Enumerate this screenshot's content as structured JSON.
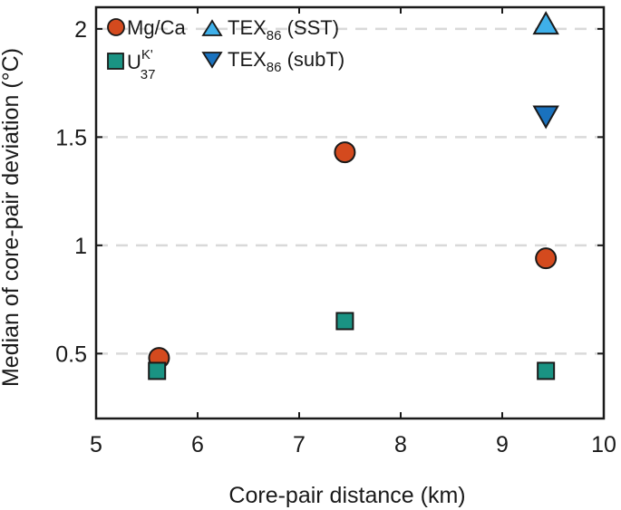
{
  "chart_data": {
    "type": "scatter",
    "xlabel": "Core-pair distance (km)",
    "ylabel": "Median of core-pair deviation (°C)",
    "xlim": [
      5,
      10
    ],
    "ylim": [
      0.2,
      2.1
    ],
    "xticks": [
      5,
      6,
      7,
      8,
      9,
      10
    ],
    "xtick_labels": [
      "5",
      "6",
      "7",
      "8",
      "9",
      "10"
    ],
    "yticks": [
      0.5,
      1,
      1.5,
      2
    ],
    "ytick_labels": [
      "0.5",
      "1",
      "1.5",
      "2"
    ],
    "grid": "horizontal dashed",
    "legend_position": "top-left",
    "series": [
      {
        "name": "Mg/Ca",
        "label_main": "Mg/Ca",
        "marker": "circle",
        "color": "#d44a1e",
        "points": [
          {
            "x": 5.62,
            "y": 0.48
          },
          {
            "x": 7.45,
            "y": 1.43
          },
          {
            "x": 9.43,
            "y": 0.94
          }
        ]
      },
      {
        "name": "UK'37",
        "label_main": "U",
        "label_sup": "K'",
        "label_sub": "37",
        "marker": "square",
        "color": "#1a9383",
        "points": [
          {
            "x": 5.6,
            "y": 0.42
          },
          {
            "x": 7.45,
            "y": 0.65
          },
          {
            "x": 9.43,
            "y": 0.42
          }
        ]
      },
      {
        "name": "TEX86 (SST)",
        "label_main": "TEX",
        "label_sub": "86",
        "label_tail": " (SST)",
        "marker": "triangle-up",
        "color": "#3fb0ea",
        "points": [
          {
            "x": 9.43,
            "y": 2.02
          }
        ]
      },
      {
        "name": "TEX86 (subT)",
        "label_main": "TEX",
        "label_sub": "86",
        "label_tail": " (subT)",
        "marker": "triangle-down",
        "color": "#1a72be",
        "points": [
          {
            "x": 9.43,
            "y": 1.6
          }
        ]
      }
    ]
  }
}
